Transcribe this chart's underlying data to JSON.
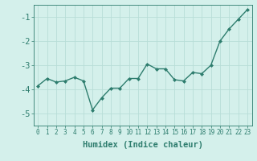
{
  "x": [
    0,
    1,
    2,
    3,
    4,
    5,
    6,
    7,
    8,
    9,
    10,
    11,
    12,
    13,
    14,
    15,
    16,
    17,
    18,
    19,
    20,
    21,
    22,
    23
  ],
  "y": [
    -3.85,
    -3.55,
    -3.7,
    -3.65,
    -3.5,
    -3.65,
    -4.85,
    -4.35,
    -3.95,
    -3.95,
    -3.55,
    -3.55,
    -2.95,
    -3.15,
    -3.15,
    -3.6,
    -3.65,
    -3.3,
    -3.35,
    -3.0,
    -2.0,
    -1.5,
    -1.1,
    -0.7
  ],
  "line_color": "#2e7d6e",
  "marker": "D",
  "marker_size": 2.0,
  "bg_color": "#d4f0eb",
  "grid_color": "#b8ddd7",
  "xlabel": "Humidex (Indice chaleur)",
  "ylim": [
    -5.5,
    -0.5
  ],
  "xlim": [
    -0.5,
    23.5
  ],
  "yticks": [
    -5,
    -4,
    -3,
    -2,
    -1
  ],
  "xticks": [
    0,
    1,
    2,
    3,
    4,
    5,
    6,
    7,
    8,
    9,
    10,
    11,
    12,
    13,
    14,
    15,
    16,
    17,
    18,
    19,
    20,
    21,
    22,
    23
  ],
  "xlabel_fontsize": 7.5,
  "ytick_fontsize": 7.5,
  "xtick_fontsize": 5.5,
  "line_width": 1.0
}
